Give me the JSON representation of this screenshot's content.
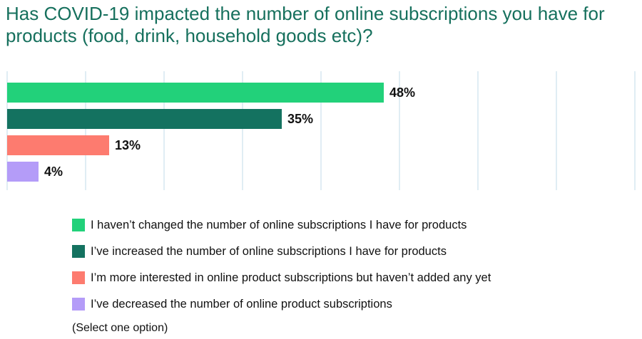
{
  "chart_data": {
    "type": "bar",
    "orientation": "horizontal",
    "title": "Has COVID-19 impacted the number of online subscriptions you have for products (food, drink, household goods etc)?",
    "categories": [
      "I haven’t changed the number of online subscriptions I have for products",
      "I’ve increased the number of online subscriptions I have for products",
      "I’m more interested in online product subscriptions but haven’t added any yet",
      "I’ve decreased the number of online product subscriptions"
    ],
    "values": [
      48,
      35,
      13,
      4
    ],
    "value_labels": [
      "48%",
      "35%",
      "13%",
      "4%"
    ],
    "colors": [
      "#22d17a",
      "#147260",
      "#fd7b6f",
      "#b49cf8"
    ],
    "xlim": [
      0,
      80
    ],
    "grid": true,
    "legend_position": "bottom"
  },
  "note": "(Select one option)"
}
